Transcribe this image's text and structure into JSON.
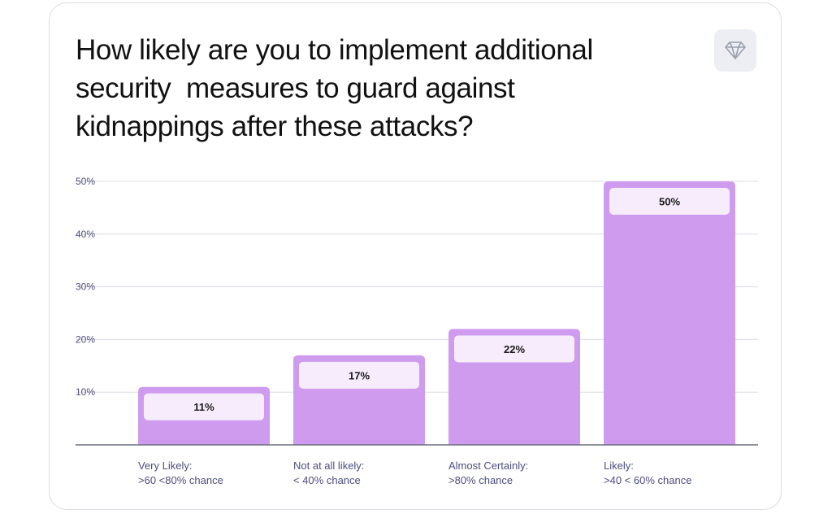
{
  "header": {
    "title": "How likely are you to implement additional\nsecurity  measures to guard against\nkidnappings after these attacks?",
    "badge_icon": "diamond-icon"
  },
  "chart_data": {
    "type": "bar",
    "title": "How likely are you to implement additional security measures to guard against kidnappings after these attacks?",
    "categories": [
      [
        "Very Likely:",
        ">60  <80% chance"
      ],
      [
        "Not at all likely:",
        "< 40% chance"
      ],
      [
        "Almost Certainly:",
        ">80% chance"
      ],
      [
        "Likely:",
        ">40 < 60% chance"
      ]
    ],
    "values": [
      11,
      17,
      22,
      50
    ],
    "value_labels": [
      "11%",
      "17%",
      "22%",
      "50%"
    ],
    "ytick_values": [
      10,
      20,
      30,
      40,
      50
    ],
    "ytick_labels": [
      "10%",
      "20%",
      "30%",
      "40%",
      "50%"
    ],
    "ylim": [
      0,
      50
    ],
    "grid": true,
    "xlabel": "",
    "ylabel": "",
    "colors": {
      "bar": "#cf9bef",
      "label_box": "#f6ecfc",
      "grid": "#dcdce6",
      "axis": "#6b6e7d",
      "tick_text": "#4a4f7c",
      "category_text": "#4a4f7c",
      "value_text": "#1a1a1a"
    }
  }
}
